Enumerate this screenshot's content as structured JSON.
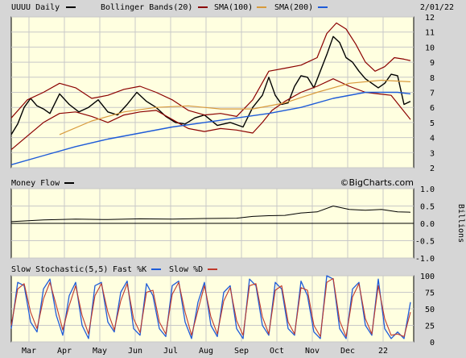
{
  "header": {
    "symbol_label": "UUUU Daily",
    "bollinger_label": "Bollinger Bands(20)",
    "sma100_label": "SMA(100)",
    "sma200_label": "SMA(200)",
    "date": "2/01/22"
  },
  "watermark": "©BigCharts.com",
  "colors": {
    "background": "#d6d6d6",
    "panel": "#ffffe0",
    "grid": "#c8c8c8",
    "price": "#000000",
    "bollinger": "#8b0000",
    "sma100": "#d89a3c",
    "sma200": "#1e5bd8",
    "fast_k": "#1e5bd8",
    "slow_d": "#c0392b"
  },
  "x_months": [
    "Mar",
    "Apr",
    "May",
    "Jun",
    "Jul",
    "Aug",
    "Sep",
    "Oct",
    "Nov",
    "Dec",
    "22"
  ],
  "chart_data": [
    {
      "id": "price",
      "type": "line",
      "title": "UUUU Daily",
      "ylim": [
        2,
        12
      ],
      "yticks": [
        "2",
        "3",
        "4",
        "5",
        "6",
        "7",
        "8",
        "9",
        "10",
        "11",
        "12"
      ],
      "series": [
        {
          "name": "UUUU Daily",
          "x": [
            0,
            4,
            8,
            12,
            16,
            20,
            24,
            30,
            36,
            42,
            48,
            54,
            60,
            66,
            72,
            78,
            84,
            90,
            96,
            102,
            108,
            114,
            120,
            128,
            136,
            144,
            150,
            156,
            160,
            164,
            168,
            172,
            176,
            180,
            184,
            188,
            192,
            196,
            200,
            204,
            208,
            212,
            216,
            220,
            224,
            228,
            232,
            236,
            240,
            244,
            248
          ],
          "y": [
            4.2,
            4.9,
            6.0,
            6.6,
            6.1,
            5.9,
            5.6,
            6.9,
            6.2,
            5.7,
            6.0,
            6.5,
            5.7,
            5.5,
            6.2,
            7.0,
            6.4,
            6.0,
            5.4,
            5.0,
            4.9,
            5.3,
            5.5,
            4.8,
            5.0,
            4.7,
            6.0,
            6.8,
            8.0,
            6.8,
            6.2,
            6.3,
            7.4,
            8.1,
            8.0,
            7.3,
            8.4,
            9.5,
            10.7,
            10.3,
            9.3,
            9.0,
            8.4,
            7.9,
            7.6,
            7.3,
            7.6,
            8.2,
            8.1,
            6.2,
            6.4
          ]
        },
        {
          "name": "Bollinger Bands(20) Upper",
          "x": [
            0,
            10,
            20,
            30,
            40,
            50,
            60,
            70,
            80,
            90,
            100,
            110,
            120,
            130,
            140,
            150,
            160,
            170,
            180,
            190,
            196,
            202,
            208,
            214,
            220,
            226,
            232,
            238,
            244,
            248
          ],
          "y": [
            5.3,
            6.5,
            7.0,
            7.6,
            7.3,
            6.6,
            6.8,
            7.2,
            7.4,
            7.0,
            6.5,
            5.8,
            5.5,
            5.6,
            5.4,
            6.5,
            8.4,
            8.6,
            8.8,
            9.3,
            10.9,
            11.6,
            11.2,
            10.2,
            9.0,
            8.4,
            8.7,
            9.3,
            9.2,
            9.1
          ]
        },
        {
          "name": "Bollinger Bands(20) Lower",
          "x": [
            0,
            10,
            20,
            30,
            40,
            50,
            60,
            70,
            80,
            90,
            100,
            110,
            120,
            130,
            140,
            150,
            156,
            162,
            170,
            180,
            190,
            200,
            210,
            220,
            228,
            236,
            242,
            248
          ],
          "y": [
            3.2,
            4.1,
            5.0,
            5.6,
            5.7,
            5.4,
            5.0,
            5.5,
            5.7,
            5.8,
            5.2,
            4.6,
            4.4,
            4.6,
            4.5,
            4.3,
            5.0,
            5.8,
            6.4,
            7.0,
            7.4,
            7.9,
            7.4,
            7.0,
            6.9,
            6.8,
            6.0,
            5.2
          ]
        },
        {
          "name": "SMA(100)",
          "x": [
            30,
            50,
            70,
            90,
            110,
            130,
            150,
            170,
            190,
            210,
            230,
            248
          ],
          "y": [
            4.2,
            5.1,
            5.7,
            6.0,
            6.1,
            5.9,
            5.9,
            6.3,
            7.0,
            7.6,
            7.8,
            7.7
          ]
        },
        {
          "name": "SMA(200)",
          "x": [
            0,
            20,
            40,
            60,
            80,
            100,
            120,
            140,
            160,
            180,
            200,
            220,
            240,
            248
          ],
          "y": [
            2.2,
            2.8,
            3.4,
            3.9,
            4.3,
            4.7,
            5.0,
            5.3,
            5.6,
            6.0,
            6.6,
            7.0,
            7.0,
            6.9
          ]
        }
      ]
    },
    {
      "id": "money_flow",
      "type": "line",
      "title": "Money Flow",
      "ylabel": "Billions",
      "ylim": [
        -1.0,
        1.0
      ],
      "yticks": [
        "-1.0",
        "-0.5",
        "0.0",
        "0.5",
        "1.0"
      ],
      "series": [
        {
          "name": "Money Flow",
          "x": [
            0,
            20,
            40,
            60,
            80,
            100,
            120,
            140,
            150,
            160,
            170,
            180,
            190,
            200,
            210,
            220,
            230,
            240,
            248
          ],
          "y": [
            0.05,
            0.1,
            0.12,
            0.11,
            0.13,
            0.12,
            0.14,
            0.15,
            0.2,
            0.22,
            0.23,
            0.3,
            0.33,
            0.5,
            0.4,
            0.38,
            0.4,
            0.33,
            0.32
          ]
        }
      ]
    },
    {
      "id": "slow_stochastic",
      "type": "line",
      "title": "Slow Stochastic(5,5)",
      "ylim": [
        0,
        100
      ],
      "yticks": [
        "0",
        "25",
        "50",
        "75",
        "100"
      ],
      "series": [
        {
          "name": "Fast %K",
          "x": [
            0,
            4,
            8,
            12,
            16,
            20,
            24,
            28,
            32,
            36,
            40,
            44,
            48,
            52,
            56,
            60,
            64,
            68,
            72,
            76,
            80,
            84,
            88,
            92,
            96,
            100,
            104,
            108,
            112,
            116,
            120,
            124,
            128,
            132,
            136,
            140,
            144,
            148,
            152,
            156,
            160,
            164,
            168,
            172,
            176,
            180,
            184,
            188,
            192,
            196,
            200,
            204,
            208,
            212,
            216,
            220,
            224,
            228,
            232,
            236,
            240,
            244,
            248
          ],
          "y": [
            20,
            90,
            85,
            30,
            15,
            80,
            95,
            40,
            10,
            70,
            90,
            25,
            5,
            85,
            90,
            30,
            15,
            75,
            92,
            20,
            10,
            88,
            70,
            20,
            8,
            85,
            92,
            30,
            5,
            60,
            90,
            25,
            8,
            75,
            85,
            20,
            5,
            95,
            85,
            25,
            10,
            90,
            80,
            20,
            10,
            92,
            70,
            15,
            5,
            100,
            95,
            20,
            5,
            80,
            90,
            25,
            10,
            95,
            20,
            5,
            15,
            5,
            60
          ]
        },
        {
          "name": "Slow %D",
          "x": [
            0,
            4,
            8,
            12,
            16,
            20,
            24,
            28,
            32,
            36,
            40,
            44,
            48,
            52,
            56,
            60,
            64,
            68,
            72,
            76,
            80,
            84,
            88,
            92,
            96,
            100,
            104,
            108,
            112,
            116,
            120,
            124,
            128,
            132,
            136,
            140,
            144,
            148,
            152,
            156,
            160,
            164,
            168,
            172,
            176,
            180,
            184,
            188,
            192,
            196,
            200,
            204,
            208,
            212,
            216,
            220,
            224,
            228,
            232,
            236,
            240,
            244,
            248
          ],
          "y": [
            25,
            80,
            88,
            45,
            20,
            65,
            90,
            55,
            18,
            55,
            85,
            40,
            12,
            70,
            88,
            45,
            18,
            62,
            88,
            35,
            14,
            75,
            78,
            30,
            12,
            72,
            90,
            45,
            10,
            48,
            85,
            38,
            12,
            62,
            82,
            32,
            10,
            85,
            88,
            38,
            12,
            78,
            85,
            30,
            12,
            82,
            78,
            25,
            8,
            90,
            96,
            32,
            8,
            68,
            88,
            35,
            12,
            85,
            35,
            10,
            12,
            8,
            45
          ]
        }
      ]
    }
  ]
}
